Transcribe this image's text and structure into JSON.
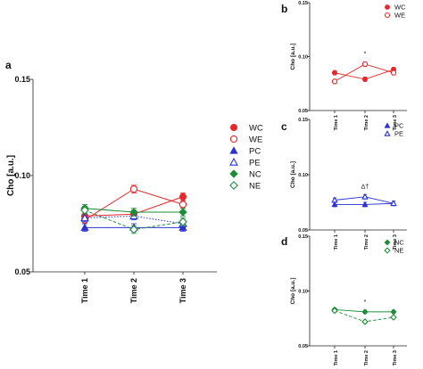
{
  "chart_data": [
    {
      "panel": "a",
      "type": "line",
      "ylabel": "Cho [a.u.]",
      "ylim": [
        0.05,
        0.15
      ],
      "yticks": [
        "0.05",
        "0.10",
        "0.15"
      ],
      "categories": [
        "Time 1",
        "Time 2",
        "Time 3"
      ],
      "series": [
        {
          "name": "WC",
          "values": [
            0.079,
            0.08,
            0.089
          ],
          "err": [
            0.002,
            0.002,
            0.002
          ],
          "color": "#e8262b",
          "marker": "circle-filled",
          "line": "solid"
        },
        {
          "name": "WE",
          "values": [
            0.077,
            0.093,
            0.085
          ],
          "err": [
            0.002,
            0.002,
            0.002
          ],
          "color": "#e8262b",
          "marker": "circle-open",
          "line": "solid"
        },
        {
          "name": "PC",
          "values": [
            0.073,
            0.073,
            0.073
          ],
          "err": [
            0.002,
            0.002,
            0.002
          ],
          "color": "#2a33d0",
          "marker": "triangle-filled",
          "line": "solid"
        },
        {
          "name": "PE",
          "values": [
            0.078,
            0.079,
            0.075
          ],
          "err": [
            0.002,
            0.002,
            0.002
          ],
          "color": "#2a33d0",
          "marker": "triangle-open",
          "line": "dotted"
        },
        {
          "name": "NC",
          "values": [
            0.083,
            0.081,
            0.081
          ],
          "err": [
            0.002,
            0.002,
            0.002
          ],
          "color": "#1e8c3a",
          "marker": "diamond-filled",
          "line": "solid"
        },
        {
          "name": "NE",
          "values": [
            0.082,
            0.072,
            0.076
          ],
          "err": [
            0.002,
            0.002,
            0.002
          ],
          "color": "#1e8c3a",
          "marker": "diamond-open",
          "line": "dashed"
        }
      ]
    },
    {
      "panel": "b",
      "type": "line",
      "ylabel": "Cho [a.u.]",
      "ylim": [
        0.05,
        0.15
      ],
      "yticks": [
        "0.05",
        "0.10",
        "0.15"
      ],
      "categories": [
        "Time 1",
        "Time 2",
        "Time 3"
      ],
      "annotations": [
        {
          "category": "Time 2",
          "text": "*"
        }
      ],
      "series": [
        {
          "name": "WC",
          "values": [
            0.085,
            0.079,
            0.088
          ],
          "err": [
            0.002,
            0.002,
            0.002
          ],
          "color": "#e8262b",
          "marker": "circle-filled",
          "line": "solid"
        },
        {
          "name": "WE",
          "values": [
            0.077,
            0.093,
            0.085
          ],
          "err": [
            0.002,
            0.002,
            0.002
          ],
          "color": "#e8262b",
          "marker": "circle-open",
          "line": "solid"
        }
      ]
    },
    {
      "panel": "c",
      "type": "line",
      "ylabel": "Cho [a.u.]",
      "ylim": [
        0.05,
        0.15
      ],
      "yticks": [
        "0.05",
        "0.10",
        "0.15"
      ],
      "categories": [
        "Time 1",
        "Time 2",
        "Time 3"
      ],
      "annotations": [
        {
          "category": "Time 2",
          "text": "∆†"
        }
      ],
      "series": [
        {
          "name": "PC",
          "values": [
            0.073,
            0.073,
            0.074
          ],
          "err": [
            0.002,
            0.002,
            0.002
          ],
          "color": "#2a33d0",
          "marker": "triangle-filled",
          "line": "solid"
        },
        {
          "name": "PE",
          "values": [
            0.077,
            0.08,
            0.074
          ],
          "err": [
            0.002,
            0.002,
            0.002
          ],
          "color": "#2a33d0",
          "marker": "triangle-open",
          "line": "solid"
        }
      ]
    },
    {
      "panel": "d",
      "type": "line",
      "ylabel": "Cho [a.u.]",
      "ylim": [
        0.05,
        0.15
      ],
      "yticks": [
        "0.05",
        "0.10",
        "0.15"
      ],
      "categories": [
        "Time 1",
        "Time 2",
        "Time 3"
      ],
      "annotations": [
        {
          "category": "Time 2",
          "text": "*"
        }
      ],
      "series": [
        {
          "name": "NC",
          "values": [
            0.083,
            0.081,
            0.081
          ],
          "err": [
            0.0015,
            0.0015,
            0.0015
          ],
          "color": "#1e8c3a",
          "marker": "diamond-filled",
          "line": "solid"
        },
        {
          "name": "NE",
          "values": [
            0.082,
            0.072,
            0.076
          ],
          "err": [
            0.0015,
            0.0015,
            0.0015
          ],
          "color": "#1e8c3a",
          "marker": "diamond-open",
          "line": "dashed"
        }
      ]
    }
  ]
}
